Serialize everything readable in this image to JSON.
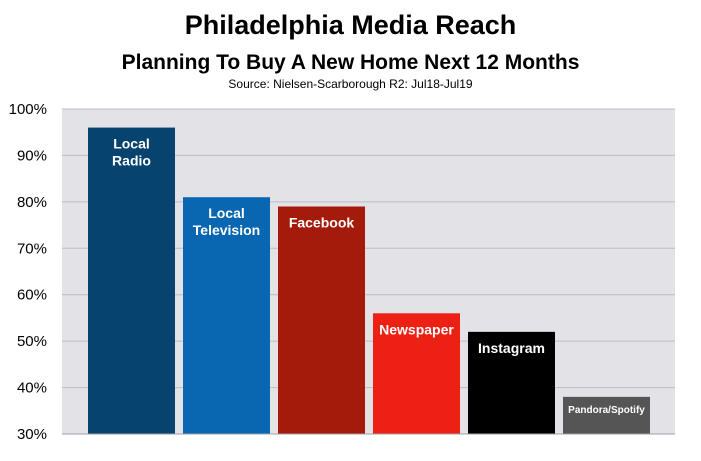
{
  "chart_data": {
    "type": "bar",
    "title": "Philadelphia Media Reach",
    "subtitle": "Planning To Buy A New Home Next 12 Months",
    "source": "Source: Nielsen-Scarborough R2: Jul18-Jul19",
    "ylim": [
      30,
      100
    ],
    "yticks": [
      "30%",
      "40%",
      "50%",
      "60%",
      "70%",
      "80%",
      "90%",
      "100%"
    ],
    "grid": true,
    "plot_background": "#e3e2e7",
    "categories": [
      {
        "label": [
          "Local",
          "Radio"
        ],
        "value": 96,
        "color": "#06436f"
      },
      {
        "label": [
          "Local",
          "Television"
        ],
        "value": 81,
        "color": "#0867b0"
      },
      {
        "label": [
          "Facebook"
        ],
        "value": 79,
        "color": "#a51b0b"
      },
      {
        "label": [
          "Newspaper"
        ],
        "value": 56,
        "color": "#ec2113"
      },
      {
        "label": [
          "Instagram"
        ],
        "value": 52,
        "color": "#000000"
      },
      {
        "label": [
          "Pandora/Spotify"
        ],
        "value": 38,
        "color": "#555555"
      }
    ]
  }
}
